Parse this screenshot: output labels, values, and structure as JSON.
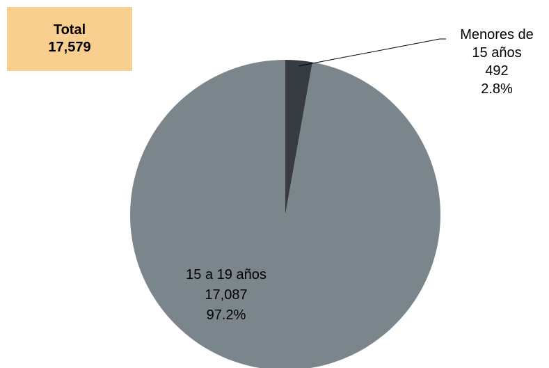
{
  "total_box": {
    "label": "Total",
    "value": "17,579",
    "color": "#f9cf8f"
  },
  "chart_data": {
    "type": "pie",
    "title": "",
    "start_angle_deg": 0,
    "direction": "clockwise",
    "slices": [
      {
        "name": "Menores de 15 años",
        "label_lines": [
          "Menores de",
          "15 años"
        ],
        "value": 492,
        "value_text": "492",
        "percent": 2.8,
        "percent_text": "2.8%",
        "color": "#373c40"
      },
      {
        "name": "15 a 19 años",
        "label_lines": [
          "15 a 19 años"
        ],
        "value": 17087,
        "value_text": "17,087",
        "percent": 97.2,
        "percent_text": "97.2%",
        "color": "#7b868c"
      }
    ]
  }
}
